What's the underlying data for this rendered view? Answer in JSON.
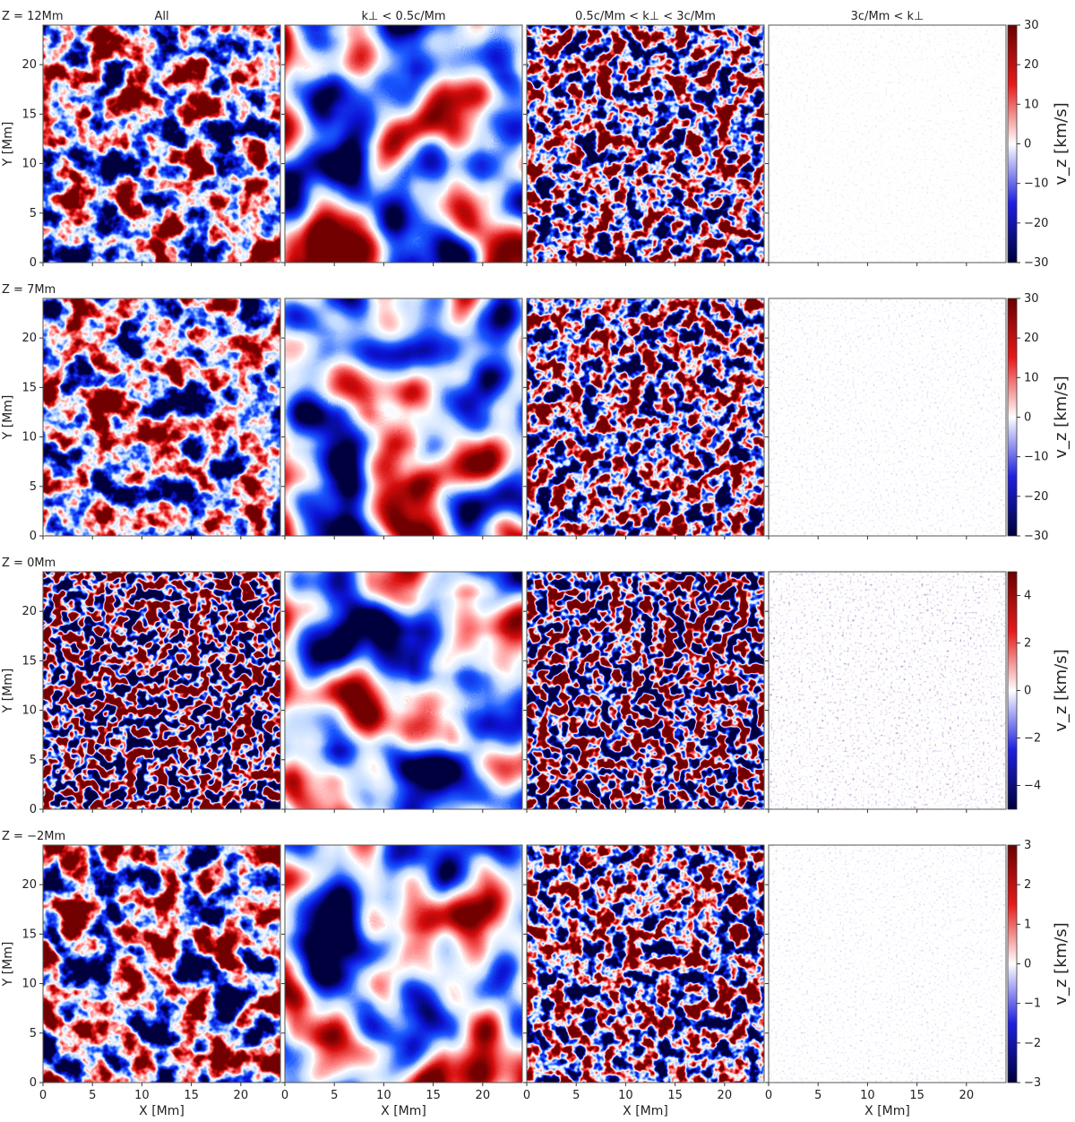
{
  "figure": {
    "column_titles": [
      "All",
      "k⊥ < 0.5c/Mm",
      "0.5c/Mm < k⊥ < 3c/Mm",
      "3c/Mm < k⊥"
    ],
    "x_label": "X [Mm]",
    "y_label": "Y [Mm]",
    "colorbar_label": "v_z [km/s]",
    "colormap": "seismic (blue - white - red)",
    "fourth_column_colormap": "white - purple",
    "colors": {
      "red": "#d90000",
      "blue": "#1a1acc",
      "dark_red": "#6b0000",
      "dark_blue": "#00003a",
      "purple": "#7a2a7a"
    }
  },
  "chart_data": [
    {
      "type": "heatmap",
      "row_label": "Z = 12Mm",
      "columns": [
        "All",
        "k⊥ < 0.5c/Mm",
        "0.5c/Mm < k⊥ < 3c/Mm",
        "3c/Mm < k⊥"
      ],
      "xlabel": "X [Mm]",
      "ylabel": "Y [Mm]",
      "xlim": [
        0,
        24
      ],
      "ylim": [
        0,
        24
      ],
      "xticks": [
        0,
        5,
        10,
        15,
        20
      ],
      "yticks": [
        0,
        5,
        10,
        15,
        20
      ],
      "colorbar": {
        "label": "v_z [km/s]",
        "vmin": -30,
        "vmax": 30,
        "ticks": [
          30,
          20,
          10,
          0,
          -10,
          -20,
          -30
        ]
      }
    },
    {
      "type": "heatmap",
      "row_label": "Z = 7Mm",
      "columns": [
        "All",
        "k⊥ < 0.5c/Mm",
        "0.5c/Mm < k⊥ < 3c/Mm",
        "3c/Mm < k⊥"
      ],
      "xlabel": "X [Mm]",
      "ylabel": "Y [Mm]",
      "xlim": [
        0,
        24
      ],
      "ylim": [
        0,
        24
      ],
      "xticks": [
        0,
        5,
        10,
        15,
        20
      ],
      "yticks": [
        0,
        5,
        10,
        15,
        20
      ],
      "colorbar": {
        "label": "v_z [km/s]",
        "vmin": -30,
        "vmax": 30,
        "ticks": [
          30,
          20,
          10,
          0,
          -10,
          -20,
          -30
        ]
      }
    },
    {
      "type": "heatmap",
      "row_label": "Z = 0Mm",
      "columns": [
        "All",
        "k⊥ < 0.5c/Mm",
        "0.5c/Mm < k⊥ < 3c/Mm",
        "3c/Mm < k⊥"
      ],
      "xlabel": "X [Mm]",
      "ylabel": "Y [Mm]",
      "xlim": [
        0,
        24
      ],
      "ylim": [
        0,
        24
      ],
      "xticks": [
        0,
        5,
        10,
        15,
        20
      ],
      "yticks": [
        0,
        5,
        10,
        15,
        20
      ],
      "colorbar": {
        "label": "v_z [km/s]",
        "vmin": -5,
        "vmax": 5,
        "ticks": [
          4,
          2,
          0,
          -2,
          -4
        ]
      }
    },
    {
      "type": "heatmap",
      "row_label": "Z = −2Mm",
      "columns": [
        "All",
        "k⊥ < 0.5c/Mm",
        "0.5c/Mm < k⊥ < 3c/Mm",
        "3c/Mm < k⊥"
      ],
      "xlabel": "X [Mm]",
      "ylabel": "Y [Mm]",
      "xlim": [
        0,
        24
      ],
      "ylim": [
        0,
        24
      ],
      "xticks": [
        0,
        5,
        10,
        15,
        20
      ],
      "yticks": [
        0,
        5,
        10,
        15,
        20
      ],
      "colorbar": {
        "label": "v_z [km/s]",
        "vmin": -3,
        "vmax": 3,
        "ticks": [
          3,
          2,
          1,
          0,
          -1,
          -2,
          -3
        ]
      }
    }
  ]
}
